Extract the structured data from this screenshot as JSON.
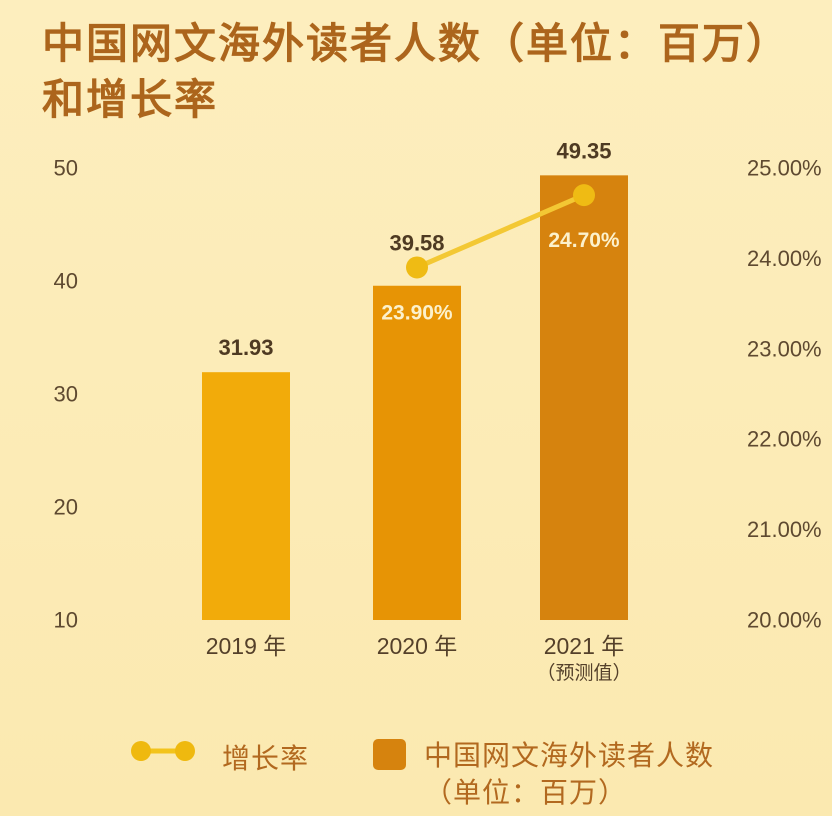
{
  "title": {
    "line1": "中国网文海外读者人数（单位：百万）",
    "line2": "和增长率"
  },
  "legend": {
    "growth_label": "增长率",
    "readers_label_line1": "中国网文海外读者人数",
    "readers_label_line2": "（单位：百万）"
  },
  "colors": {
    "background_top": "#FDEEBE",
    "background_bottom": "#FBE9B0",
    "title": "#AC651C",
    "legend_text": "#B2691F",
    "legend_square": "#D6830E"
  },
  "chart_data": {
    "type": "bar",
    "title": "中国网文海外读者人数（单位：百万）和增长率",
    "categories": [
      {
        "id": "2019",
        "label": "2019 年",
        "sublabel": ""
      },
      {
        "id": "2020",
        "label": "2020 年",
        "sublabel": ""
      },
      {
        "id": "2021",
        "label": "2021 年",
        "sublabel": "（预测值）"
      }
    ],
    "series": [
      {
        "name": "中国网文海外读者人数（单位：百万）",
        "type": "bar",
        "values": [
          31.93,
          39.58,
          49.35
        ],
        "labels": [
          "31.93",
          "39.58",
          "49.35"
        ],
        "bar_colors": [
          "#F2AB0A",
          "#E79405",
          "#D6830E"
        ]
      },
      {
        "name": "增长率",
        "type": "line",
        "values": [
          null,
          23.9,
          24.7
        ],
        "labels": [
          "",
          "23.90%",
          "24.70%"
        ],
        "line_color": "#F3C834",
        "marker_color": "#EFBB14"
      }
    ],
    "left_axis": {
      "min": 10,
      "max": 50,
      "ticks": [
        "50",
        "40",
        "30",
        "20",
        "10"
      ]
    },
    "right_axis": {
      "min": 20,
      "max": 25,
      "ticks": [
        "25.00%",
        "24.00%",
        "23.00%",
        "22.00%",
        "21.00%",
        "20.00%"
      ]
    },
    "grid": false,
    "legend_position": "bottom"
  }
}
